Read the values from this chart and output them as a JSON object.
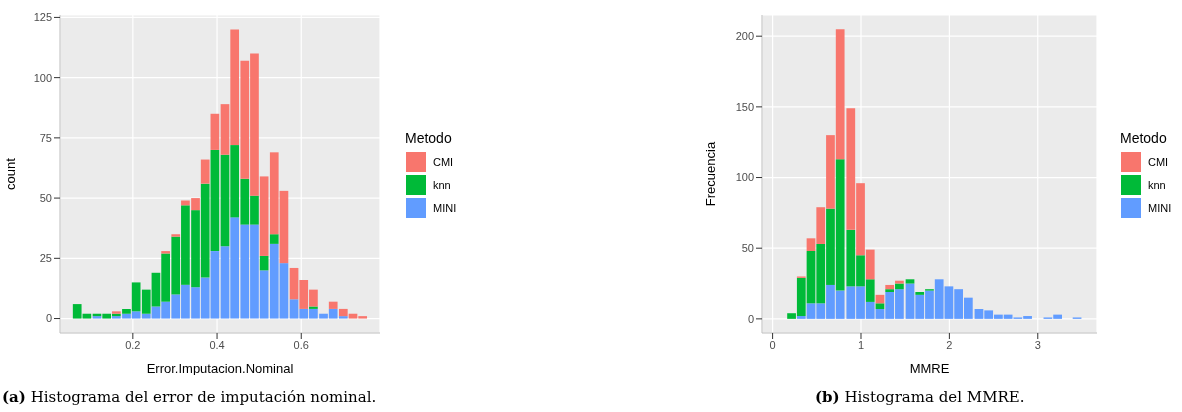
{
  "chart_data": [
    {
      "type": "bar",
      "xlabel": "Error.Imputacion.Nominal",
      "ylabel": "count",
      "legend_title": "Metodo",
      "stacked": true,
      "grid": true,
      "legend": "right",
      "x": [
        0.069,
        0.092,
        0.116,
        0.139,
        0.162,
        0.186,
        0.209,
        0.233,
        0.256,
        0.279,
        0.303,
        0.326,
        0.35,
        0.373,
        0.396,
        0.42,
        0.443,
        0.467,
        0.49,
        0.513,
        0.537,
        0.56,
        0.584,
        0.607,
        0.63,
        0.654,
        0.677,
        0.701,
        0.724,
        0.747
      ],
      "series": [
        {
          "name": "MINI",
          "color": "#619cff",
          "values": [
            0,
            0,
            1,
            0,
            1,
            2,
            3,
            2,
            5,
            7,
            10,
            14,
            13,
            17,
            28,
            30,
            42,
            39,
            39,
            20,
            31,
            23,
            8,
            4,
            4,
            2,
            4,
            1,
            0,
            0
          ]
        },
        {
          "name": "knn",
          "color": "#00ba38",
          "values": [
            6,
            2,
            1,
            2,
            1,
            2,
            12,
            10,
            14,
            20,
            24,
            33,
            32,
            39,
            42,
            38,
            30,
            19,
            12,
            6,
            4,
            0,
            0,
            0,
            1,
            0,
            0,
            0,
            0,
            0
          ]
        },
        {
          "name": "CMI",
          "color": "#f8766d",
          "values": [
            0,
            0,
            0,
            0,
            1,
            0,
            0,
            0,
            0,
            1,
            1,
            2,
            5,
            10,
            15,
            21,
            48,
            49,
            59,
            33,
            34,
            30,
            13,
            12,
            7,
            0,
            3,
            3,
            2,
            1
          ]
        }
      ],
      "xlim": [
        0.027,
        0.787
      ],
      "xticks": [
        0.2,
        0.4,
        0.6
      ],
      "ylim": [
        -6,
        126
      ],
      "yticks": [
        0,
        25,
        50,
        75,
        100,
        125
      ],
      "annotations": [
        "(a) Histograma del error de imputación nominal."
      ]
    },
    {
      "type": "bar",
      "xlabel": "MMRE",
      "ylabel": "Frecuencia",
      "legend_title": "Metodo",
      "stacked": true,
      "grid": true,
      "legend": "right",
      "x": [
        0.22,
        0.33,
        0.44,
        0.55,
        0.66,
        0.77,
        0.89,
        1,
        1.11,
        1.22,
        1.33,
        1.44,
        1.56,
        1.67,
        1.78,
        1.89,
        2,
        2.11,
        2.22,
        2.34,
        2.45,
        2.56,
        2.67,
        2.78,
        2.89,
        3.01,
        3.12,
        3.23,
        3.34,
        3.45
      ],
      "series": [
        {
          "name": "MINI",
          "color": "#619cff",
          "values": [
            0,
            2,
            11,
            11,
            24,
            20,
            23,
            23,
            12,
            7,
            19,
            21,
            25,
            17,
            20,
            28,
            23,
            21,
            15,
            7,
            6,
            3,
            3,
            1,
            2,
            0,
            1,
            3,
            0,
            1
          ]
        },
        {
          "name": "knn",
          "color": "#00ba38",
          "values": [
            4,
            27,
            37,
            42,
            54,
            93,
            40,
            22,
            16,
            4,
            2,
            4,
            3,
            2,
            1,
            0,
            0,
            0,
            0,
            0,
            0,
            0,
            0,
            0,
            0,
            0,
            0,
            0,
            0,
            0
          ]
        },
        {
          "name": "CMI",
          "color": "#f8766d",
          "values": [
            0,
            1,
            9,
            26,
            52,
            92,
            86,
            51,
            21,
            6,
            3,
            2,
            0,
            0,
            0,
            0,
            0,
            0,
            0,
            0,
            0,
            0,
            0,
            0,
            0,
            0,
            0,
            0,
            0,
            0
          ]
        }
      ],
      "xlim": [
        -0.12,
        3.67
      ],
      "xticks": [
        0,
        1,
        2,
        3
      ],
      "ylim": [
        -10,
        215
      ],
      "yticks": [
        0,
        50,
        100,
        150,
        200
      ],
      "annotations": [
        "(b) Histograma del MMRE."
      ]
    }
  ]
}
